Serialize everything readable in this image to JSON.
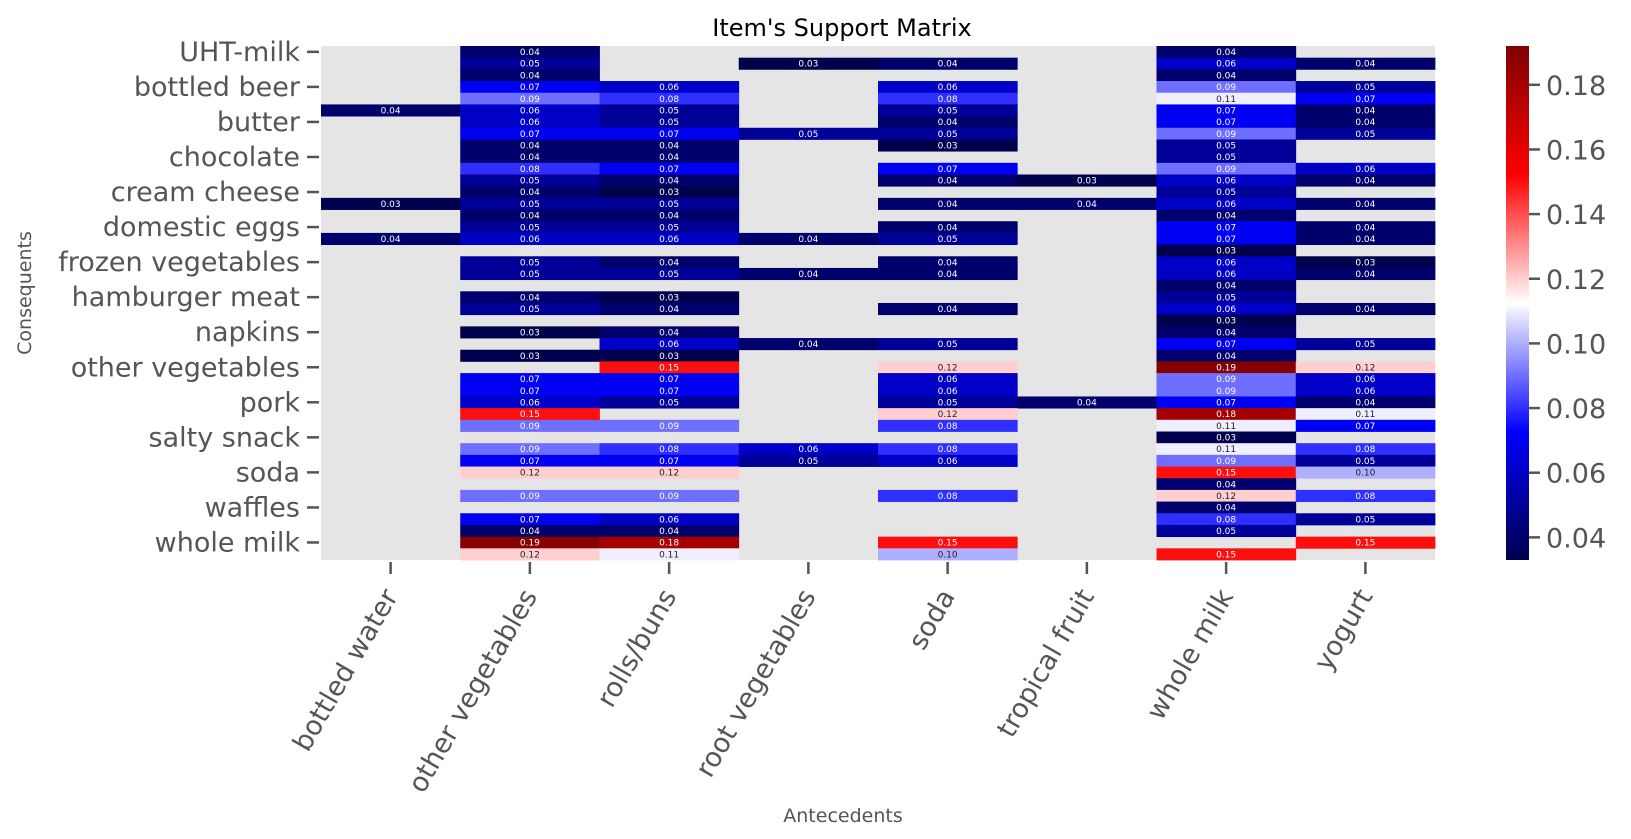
{
  "chart_data": {
    "type": "heatmap",
    "title": "Item's Support Matrix",
    "xlabel": "Antecedents",
    "ylabel": "Consequents",
    "x_categories": [
      "bottled water",
      "other vegetables",
      "rolls/buns",
      "root vegetables",
      "soda",
      "tropical fruit",
      "whole milk",
      "yogurt"
    ],
    "row_count": 44,
    "y_tick_labels": [
      {
        "row": 0,
        "label": "UHT-milk"
      },
      {
        "row": 3,
        "label": "bottled beer"
      },
      {
        "row": 6,
        "label": "butter"
      },
      {
        "row": 9,
        "label": "chocolate"
      },
      {
        "row": 12,
        "label": "cream cheese "
      },
      {
        "row": 15,
        "label": "domestic eggs"
      },
      {
        "row": 18,
        "label": "frozen vegetables"
      },
      {
        "row": 21,
        "label": "hamburger meat"
      },
      {
        "row": 24,
        "label": "napkins"
      },
      {
        "row": 27,
        "label": "other vegetables"
      },
      {
        "row": 30,
        "label": "pork"
      },
      {
        "row": 33,
        "label": "salty snack"
      },
      {
        "row": 36,
        "label": "soda"
      },
      {
        "row": 39,
        "label": "waffles"
      },
      {
        "row": 42,
        "label": "whole milk"
      }
    ],
    "cells": [
      [
        0,
        1,
        0.04
      ],
      [
        0,
        6,
        0.04
      ],
      [
        1,
        1,
        0.05
      ],
      [
        1,
        3,
        0.03
      ],
      [
        1,
        4,
        0.04
      ],
      [
        1,
        6,
        0.06
      ],
      [
        1,
        7,
        0.04
      ],
      [
        2,
        1,
        0.04
      ],
      [
        2,
        6,
        0.04
      ],
      [
        3,
        1,
        0.07
      ],
      [
        3,
        2,
        0.06
      ],
      [
        3,
        4,
        0.06
      ],
      [
        3,
        6,
        0.09
      ],
      [
        3,
        7,
        0.05
      ],
      [
        4,
        1,
        0.09
      ],
      [
        4,
        2,
        0.08
      ],
      [
        4,
        4,
        0.08
      ],
      [
        4,
        6,
        0.11
      ],
      [
        4,
        7,
        0.07
      ],
      [
        5,
        0,
        0.04
      ],
      [
        5,
        1,
        0.06
      ],
      [
        5,
        2,
        0.05
      ],
      [
        5,
        4,
        0.05
      ],
      [
        5,
        6,
        0.07
      ],
      [
        5,
        7,
        0.04
      ],
      [
        6,
        1,
        0.06
      ],
      [
        6,
        2,
        0.05
      ],
      [
        6,
        4,
        0.04
      ],
      [
        6,
        6,
        0.07
      ],
      [
        6,
        7,
        0.04
      ],
      [
        7,
        1,
        0.07
      ],
      [
        7,
        2,
        0.07
      ],
      [
        7,
        3,
        0.05
      ],
      [
        7,
        4,
        0.05
      ],
      [
        7,
        6,
        0.09
      ],
      [
        7,
        7,
        0.05
      ],
      [
        8,
        1,
        0.04
      ],
      [
        8,
        2,
        0.04
      ],
      [
        8,
        4,
        0.03
      ],
      [
        8,
        6,
        0.05
      ],
      [
        9,
        1,
        0.04
      ],
      [
        9,
        2,
        0.04
      ],
      [
        9,
        6,
        0.05
      ],
      [
        10,
        1,
        0.08
      ],
      [
        10,
        2,
        0.07
      ],
      [
        10,
        4,
        0.07
      ],
      [
        10,
        6,
        0.09
      ],
      [
        10,
        7,
        0.06
      ],
      [
        11,
        1,
        0.05
      ],
      [
        11,
        2,
        0.04
      ],
      [
        11,
        4,
        0.04
      ],
      [
        11,
        5,
        0.03
      ],
      [
        11,
        6,
        0.06
      ],
      [
        11,
        7,
        0.04
      ],
      [
        12,
        1,
        0.04
      ],
      [
        12,
        2,
        0.03
      ],
      [
        12,
        6,
        0.05
      ],
      [
        13,
        0,
        0.03
      ],
      [
        13,
        1,
        0.05
      ],
      [
        13,
        2,
        0.05
      ],
      [
        13,
        4,
        0.04
      ],
      [
        13,
        5,
        0.04
      ],
      [
        13,
        6,
        0.06
      ],
      [
        13,
        7,
        0.04
      ],
      [
        14,
        1,
        0.04
      ],
      [
        14,
        2,
        0.04
      ],
      [
        14,
        6,
        0.04
      ],
      [
        15,
        1,
        0.05
      ],
      [
        15,
        2,
        0.05
      ],
      [
        15,
        4,
        0.04
      ],
      [
        15,
        6,
        0.07
      ],
      [
        15,
        7,
        0.04
      ],
      [
        16,
        0,
        0.04
      ],
      [
        16,
        1,
        0.06
      ],
      [
        16,
        2,
        0.06
      ],
      [
        16,
        3,
        0.04
      ],
      [
        16,
        4,
        0.05
      ],
      [
        16,
        6,
        0.07
      ],
      [
        16,
        7,
        0.04
      ],
      [
        17,
        6,
        0.03
      ],
      [
        18,
        1,
        0.05
      ],
      [
        18,
        2,
        0.04
      ],
      [
        18,
        4,
        0.04
      ],
      [
        18,
        6,
        0.06
      ],
      [
        18,
        7,
        0.03
      ],
      [
        19,
        1,
        0.05
      ],
      [
        19,
        2,
        0.05
      ],
      [
        19,
        3,
        0.04
      ],
      [
        19,
        4,
        0.04
      ],
      [
        19,
        6,
        0.06
      ],
      [
        19,
        7,
        0.04
      ],
      [
        20,
        6,
        0.04
      ],
      [
        21,
        1,
        0.04
      ],
      [
        21,
        2,
        0.03
      ],
      [
        21,
        6,
        0.05
      ],
      [
        22,
        1,
        0.05
      ],
      [
        22,
        2,
        0.04
      ],
      [
        22,
        4,
        0.04
      ],
      [
        22,
        6,
        0.06
      ],
      [
        22,
        7,
        0.04
      ],
      [
        23,
        6,
        0.03
      ],
      [
        24,
        1,
        0.03
      ],
      [
        24,
        2,
        0.04
      ],
      [
        24,
        6,
        0.04
      ],
      [
        25,
        2,
        0.06
      ],
      [
        25,
        3,
        0.04
      ],
      [
        25,
        4,
        0.05
      ],
      [
        25,
        6,
        0.07
      ],
      [
        25,
        7,
        0.05
      ],
      [
        26,
        1,
        0.03
      ],
      [
        26,
        2,
        0.03
      ],
      [
        26,
        6,
        0.04
      ],
      [
        27,
        2,
        0.15
      ],
      [
        27,
        4,
        0.12
      ],
      [
        27,
        6,
        0.19
      ],
      [
        27,
        7,
        0.12
      ],
      [
        28,
        1,
        0.07
      ],
      [
        28,
        2,
        0.07
      ],
      [
        28,
        4,
        0.06
      ],
      [
        28,
        6,
        0.09
      ],
      [
        28,
        7,
        0.06
      ],
      [
        29,
        1,
        0.07
      ],
      [
        29,
        2,
        0.07
      ],
      [
        29,
        4,
        0.06
      ],
      [
        29,
        6,
        0.09
      ],
      [
        29,
        7,
        0.06
      ],
      [
        30,
        1,
        0.06
      ],
      [
        30,
        2,
        0.05
      ],
      [
        30,
        4,
        0.05
      ],
      [
        30,
        5,
        0.04
      ],
      [
        30,
        6,
        0.07
      ],
      [
        30,
        7,
        0.04
      ],
      [
        31,
        1,
        0.15
      ],
      [
        31,
        4,
        0.12
      ],
      [
        31,
        6,
        0.18
      ],
      [
        31,
        7,
        0.11
      ],
      [
        32,
        1,
        0.09
      ],
      [
        32,
        2,
        0.09
      ],
      [
        32,
        4,
        0.08
      ],
      [
        32,
        6,
        0.11
      ],
      [
        32,
        7,
        0.07
      ],
      [
        33,
        6,
        0.03
      ],
      [
        34,
        1,
        0.09
      ],
      [
        34,
        2,
        0.08
      ],
      [
        34,
        3,
        0.06
      ],
      [
        34,
        4,
        0.08
      ],
      [
        34,
        6,
        0.11
      ],
      [
        34,
        7,
        0.08
      ],
      [
        35,
        1,
        0.07
      ],
      [
        35,
        2,
        0.07
      ],
      [
        35,
        3,
        0.05
      ],
      [
        35,
        4,
        0.06
      ],
      [
        35,
        6,
        0.09
      ],
      [
        35,
        7,
        0.05
      ],
      [
        36,
        1,
        0.12
      ],
      [
        36,
        2,
        0.12
      ],
      [
        36,
        6,
        0.15
      ],
      [
        36,
        7,
        0.1
      ],
      [
        37,
        6,
        0.04
      ],
      [
        38,
        1,
        0.09
      ],
      [
        38,
        2,
        0.09
      ],
      [
        38,
        4,
        0.08
      ],
      [
        38,
        6,
        0.12
      ],
      [
        38,
        7,
        0.08
      ],
      [
        39,
        6,
        0.04
      ],
      [
        40,
        1,
        0.07
      ],
      [
        40,
        2,
        0.06
      ],
      [
        40,
        6,
        0.08
      ],
      [
        40,
        7,
        0.05
      ],
      [
        41,
        1,
        0.04
      ],
      [
        41,
        2,
        0.04
      ],
      [
        41,
        6,
        0.05
      ],
      [
        42,
        1,
        0.19
      ],
      [
        42,
        2,
        0.18
      ],
      [
        42,
        4,
        0.15
      ],
      [
        42,
        7,
        0.15
      ],
      [
        43,
        1,
        0.12
      ],
      [
        43,
        2,
        0.11
      ],
      [
        43,
        4,
        0.1
      ],
      [
        43,
        6,
        0.15
      ]
    ],
    "value_range": [
      0.033,
      0.192
    ],
    "colorbar_ticks": [
      0.04,
      0.06,
      0.08,
      0.1,
      0.12,
      0.14,
      0.16,
      0.18
    ],
    "colormap": "seismic",
    "missing_color": "#e5e5e5",
    "grid": false
  }
}
